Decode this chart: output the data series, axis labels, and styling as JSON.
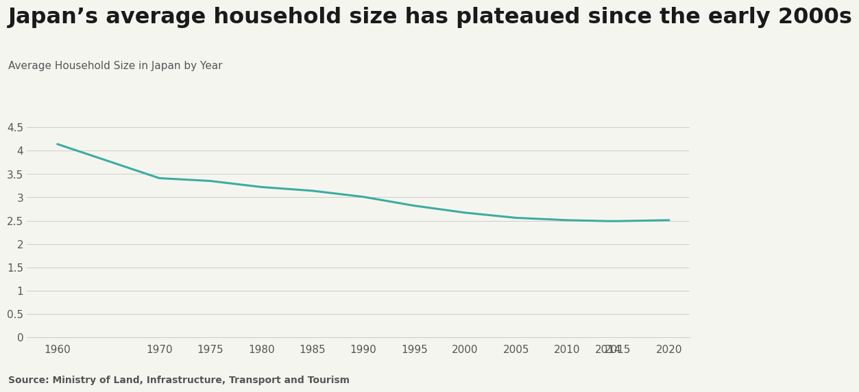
{
  "title": "Japan’s average household size has plateaued since the early 2000s",
  "subtitle": "Average Household Size in Japan by Year",
  "source": "Source: Ministry of Land, Infrastructure, Transport and Tourism",
  "years": [
    1960,
    1970,
    1975,
    1980,
    1985,
    1990,
    1995,
    2000,
    2005,
    2010,
    2014,
    2015,
    2020
  ],
  "values": [
    4.14,
    3.41,
    3.35,
    3.22,
    3.14,
    3.01,
    2.82,
    2.67,
    2.56,
    2.51,
    2.49,
    2.49,
    2.51
  ],
  "line_color": "#3aada0",
  "line_width": 2.2,
  "background_color": "#f5f5f0",
  "title_fontsize": 23,
  "subtitle_fontsize": 11,
  "tick_fontsize": 11,
  "tick_label_color": "#555555",
  "ylim": [
    0,
    4.5
  ],
  "yticks": [
    0,
    0.5,
    1.0,
    1.5,
    2.0,
    2.5,
    3.0,
    3.5,
    4.0,
    4.5
  ],
  "xtick_labels": [
    "1960",
    "1970",
    "1975",
    "1980",
    "1985",
    "1990",
    "1995",
    "2000",
    "2005",
    "2010",
    "2014",
    "2015",
    "2020"
  ],
  "grid_color": "#cccccc",
  "title_color": "#1a1a1a",
  "subtitle_color": "#555555",
  "source_fontsize": 10,
  "xlim_left": 1957,
  "xlim_right": 2022
}
